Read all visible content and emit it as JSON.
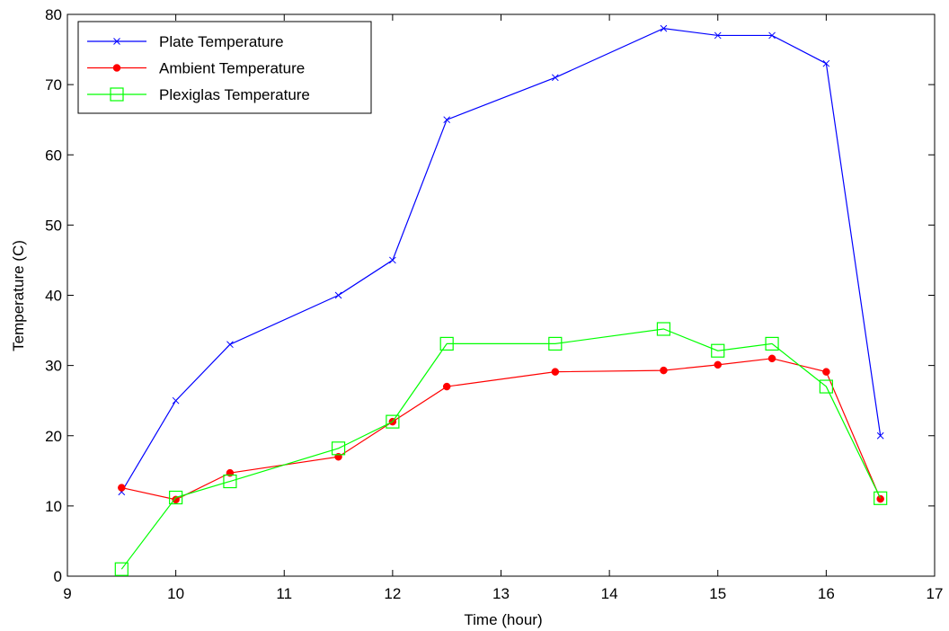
{
  "chart_data": {
    "type": "line",
    "title": "",
    "xlabel": "Time (hour)",
    "ylabel": "Temperature (C)",
    "xlim": [
      9,
      17
    ],
    "ylim": [
      0,
      80
    ],
    "xticks": [
      9,
      10,
      11,
      12,
      13,
      14,
      15,
      16,
      17
    ],
    "yticks": [
      0,
      10,
      20,
      30,
      40,
      50,
      60,
      70,
      80
    ],
    "grid": false,
    "legend_position": "top-left",
    "series": [
      {
        "name": "Plate Temperature",
        "color": "#0000ff",
        "marker": "x",
        "x": [
          9.5,
          10,
          10.5,
          11.5,
          12,
          12.5,
          13.5,
          14.5,
          15,
          15.5,
          16,
          16.5
        ],
        "y": [
          12,
          25,
          33,
          40,
          45,
          65,
          71,
          78,
          77,
          77,
          73,
          20
        ]
      },
      {
        "name": "Ambient Temperature",
        "color": "#ff0000",
        "marker": "dot",
        "x": [
          9.5,
          10,
          10.5,
          11.5,
          12,
          12.5,
          13.5,
          14.5,
          15,
          15.5,
          16,
          16.5
        ],
        "y": [
          12.6,
          10.9,
          14.7,
          17,
          22,
          27,
          29.1,
          29.3,
          30.1,
          31,
          29.1,
          11
        ]
      },
      {
        "name": "Plexiglas Temperature",
        "color": "#00ff00",
        "marker": "square",
        "x": [
          9.5,
          10,
          10.5,
          11.5,
          12,
          12.5,
          13.5,
          14.5,
          15,
          15.5,
          16,
          16.5
        ],
        "y": [
          1,
          11.2,
          13.5,
          18.2,
          22,
          33.1,
          33.1,
          35.2,
          32.1,
          33.1,
          27,
          11.1
        ]
      }
    ]
  }
}
